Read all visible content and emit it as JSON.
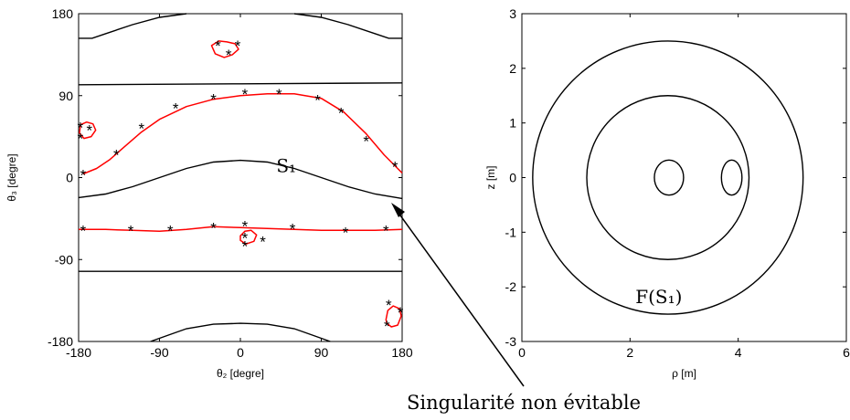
{
  "chart_data": [
    {
      "type": "line",
      "xlabel": "θ₂ [degre]",
      "ylabel": "θ₃ [degre]",
      "xlim": [
        -180,
        180
      ],
      "ylim": [
        -180,
        180
      ],
      "xticks": [
        "-180",
        "-90",
        "0",
        "90",
        "180"
      ],
      "yticks": [
        "180",
        "90",
        "0",
        "-90",
        "-180"
      ],
      "annotation": "S₁",
      "colors": {
        "boundary": "#000000",
        "singular_curve": "#ff0000",
        "marker": "#000000"
      },
      "black_curves": [
        [
          [
            -180,
            153
          ],
          [
            -165,
            153
          ],
          [
            -150,
            158
          ],
          [
            -120,
            168
          ],
          [
            -90,
            176
          ],
          [
            -60,
            180
          ]
        ],
        [
          [
            60,
            180
          ],
          [
            90,
            176
          ],
          [
            120,
            168
          ],
          [
            150,
            158
          ],
          [
            165,
            153
          ],
          [
            180,
            153
          ]
        ],
        [
          [
            -180,
            102
          ],
          [
            0,
            103
          ],
          [
            180,
            104
          ]
        ],
        [
          [
            -180,
            -22
          ],
          [
            -150,
            -18
          ],
          [
            -120,
            -10
          ],
          [
            -90,
            0
          ],
          [
            -60,
            10
          ],
          [
            -30,
            17
          ],
          [
            0,
            19
          ],
          [
            30,
            17
          ],
          [
            60,
            10
          ],
          [
            90,
            0
          ],
          [
            120,
            -10
          ],
          [
            150,
            -18
          ],
          [
            180,
            -23
          ]
        ],
        [
          [
            -180,
            -103
          ],
          [
            0,
            -103
          ],
          [
            180,
            -103
          ]
        ],
        [
          [
            -100,
            -180
          ],
          [
            -80,
            -173
          ],
          [
            -60,
            -166
          ],
          [
            -30,
            -161
          ],
          [
            0,
            -160
          ],
          [
            30,
            -161
          ],
          [
            60,
            -166
          ],
          [
            80,
            -173
          ],
          [
            100,
            -180
          ]
        ]
      ],
      "red_curves": [
        {
          "closed": false,
          "points": [
            [
              -175,
              4
            ],
            [
              -160,
              10
            ],
            [
              -145,
              20
            ],
            [
              -130,
              33
            ],
            [
              -110,
              50
            ],
            [
              -90,
              64
            ],
            [
              -60,
              78
            ],
            [
              -30,
              86
            ],
            [
              0,
              90
            ],
            [
              30,
              92
            ],
            [
              60,
              92
            ],
            [
              90,
              87
            ],
            [
              115,
              72
            ],
            [
              140,
              48
            ],
            [
              160,
              25
            ],
            [
              180,
              5
            ]
          ]
        },
        {
          "closed": false,
          "points": [
            [
              -180,
              -57
            ],
            [
              -150,
              -57
            ],
            [
              -120,
              -58
            ],
            [
              -90,
              -59
            ],
            [
              -60,
              -57
            ],
            [
              -30,
              -54
            ],
            [
              0,
              -55
            ],
            [
              30,
              -56
            ],
            [
              60,
              -57
            ],
            [
              90,
              -58
            ],
            [
              120,
              -58
            ],
            [
              150,
              -58
            ],
            [
              180,
              -57
            ]
          ]
        },
        {
          "closed": true,
          "points": [
            [
              -32,
              145
            ],
            [
              -24,
              150
            ],
            [
              -15,
              149
            ],
            [
              -6,
              147
            ],
            [
              -2,
              141
            ],
            [
              -9,
              135
            ],
            [
              -18,
              132
            ],
            [
              -28,
              136
            ]
          ]
        },
        {
          "closed": true,
          "points": [
            [
              -178,
              58
            ],
            [
              -171,
              61
            ],
            [
              -164,
              59
            ],
            [
              -161,
              52
            ],
            [
              -166,
              45
            ],
            [
              -174,
              43
            ],
            [
              -179,
              49
            ]
          ]
        },
        {
          "closed": true,
          "points": [
            [
              0,
              -64
            ],
            [
              5,
              -59
            ],
            [
              12,
              -58
            ],
            [
              18,
              -63
            ],
            [
              15,
              -70
            ],
            [
              6,
              -73
            ],
            [
              0,
              -69
            ]
          ]
        },
        {
          "closed": true,
          "points": [
            [
              162,
              -156
            ],
            [
              164,
              -146
            ],
            [
              170,
              -141
            ],
            [
              177,
              -144
            ],
            [
              179,
              -152
            ],
            [
              175,
              -162
            ],
            [
              168,
              -164
            ],
            [
              163,
              -160
            ]
          ]
        }
      ],
      "markers": [
        [
          -175,
          3
        ],
        [
          -138,
          25
        ],
        [
          -110,
          54
        ],
        [
          -72,
          76
        ],
        [
          -30,
          86
        ],
        [
          5,
          92
        ],
        [
          43,
          92
        ],
        [
          86,
          85
        ],
        [
          112,
          71
        ],
        [
          140,
          40
        ],
        [
          172,
          12
        ],
        [
          -178,
          55
        ],
        [
          -178,
          43
        ],
        [
          -168,
          52
        ],
        [
          -25,
          145
        ],
        [
          -3,
          145
        ],
        [
          -13,
          135
        ],
        [
          -175,
          -58
        ],
        [
          -122,
          -58
        ],
        [
          -78,
          -58
        ],
        [
          -30,
          -55
        ],
        [
          5,
          -53
        ],
        [
          5,
          -66
        ],
        [
          5,
          -75
        ],
        [
          25,
          -70
        ],
        [
          58,
          -56
        ],
        [
          117,
          -60
        ],
        [
          162,
          -58
        ],
        [
          165,
          -140
        ],
        [
          178,
          -148
        ],
        [
          163,
          -163
        ]
      ]
    },
    {
      "type": "line",
      "xlabel": "ρ [m]",
      "ylabel": "z [m]",
      "xlim": [
        0,
        6
      ],
      "ylim": [
        -3,
        3
      ],
      "xticks": [
        "0",
        "2",
        "4",
        "6"
      ],
      "yticks": [
        "3",
        "2",
        "1",
        "0",
        "-1",
        "-2",
        "-3"
      ],
      "annotation": "F(S₁)",
      "colors": {
        "curve": "#000000"
      },
      "ellipses": [
        {
          "center": [
            2.7,
            0
          ],
          "radii": [
            2.5,
            2.5
          ]
        },
        {
          "center": [
            2.7,
            0
          ],
          "radii": [
            1.5,
            1.5
          ]
        },
        {
          "center": [
            2.72,
            0
          ],
          "radii": [
            0.27,
            0.32
          ]
        },
        {
          "center": [
            3.88,
            0
          ],
          "radii": [
            0.19,
            0.32
          ]
        }
      ]
    }
  ],
  "caption": "Singularité non évitable"
}
